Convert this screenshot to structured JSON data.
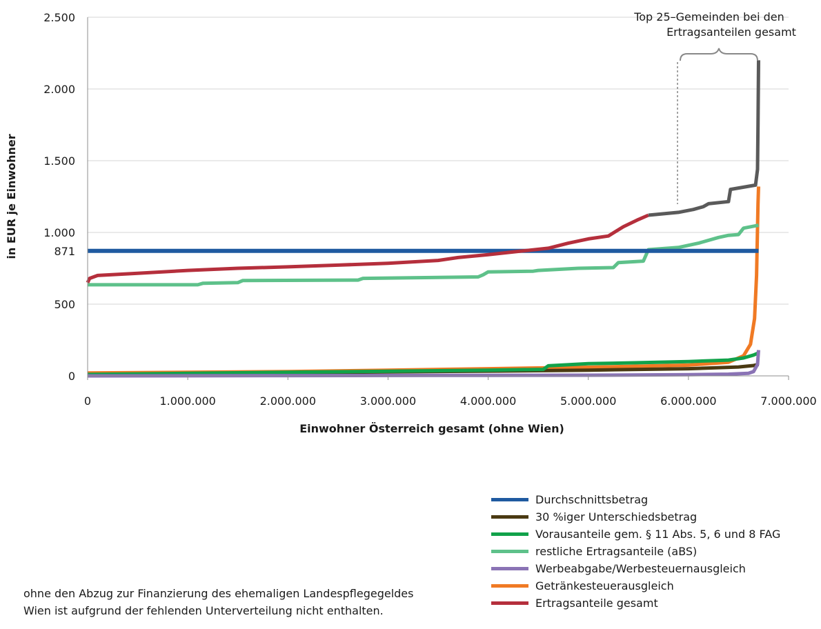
{
  "chart_data": {
    "type": "line",
    "ylabel": "in EUR je Einwohner",
    "xlabel": "Einwohner Österreich gesamt (ohne Wien)",
    "xlim": [
      0,
      7000000
    ],
    "ylim": [
      0,
      2500
    ],
    "x_ticks": [
      0,
      1000000,
      2000000,
      3000000,
      4000000,
      5000000,
      6000000,
      7000000
    ],
    "x_tick_labels": [
      "0",
      "1.000.000",
      "2.000.000",
      "3.000.000",
      "4.000.000",
      "5.000.000",
      "6.000.000",
      "7.000.000"
    ],
    "y_ticks": [
      0,
      500,
      871,
      1000,
      1500,
      2000,
      2500
    ],
    "y_tick_labels": [
      "0",
      "500",
      "871",
      "1.000",
      "1.500",
      "2.000",
      "2.500"
    ],
    "grid": "horizontal",
    "legend_position": "bottom-right",
    "series": [
      {
        "name": "Durchschnittsbetrag",
        "color": "#1f5aa0",
        "points": [
          [
            0,
            871
          ],
          [
            6700000,
            871
          ]
        ]
      },
      {
        "name": "30 %iger Unterschiedsbetrag",
        "color": "#4a3a12",
        "points": [
          [
            0,
            5
          ],
          [
            1000000,
            15
          ],
          [
            2000000,
            22
          ],
          [
            3000000,
            28
          ],
          [
            4000000,
            33
          ],
          [
            5000000,
            40
          ],
          [
            6000000,
            50
          ],
          [
            6500000,
            62
          ],
          [
            6650000,
            72
          ],
          [
            6700000,
            80
          ]
        ]
      },
      {
        "name": "Vorausanteile gem. § 11 Abs. 5, 6 und 8 FAG",
        "color": "#11a24a",
        "points": [
          [
            0,
            10
          ],
          [
            1000000,
            18
          ],
          [
            2000000,
            25
          ],
          [
            3000000,
            32
          ],
          [
            4000000,
            40
          ],
          [
            4550000,
            45
          ],
          [
            4600000,
            70
          ],
          [
            5000000,
            85
          ],
          [
            5500000,
            92
          ],
          [
            6000000,
            100
          ],
          [
            6400000,
            110
          ],
          [
            6550000,
            125
          ],
          [
            6650000,
            145
          ],
          [
            6700000,
            160
          ]
        ]
      },
      {
        "name": "restliche Ertragsanteile (aBS)",
        "color": "#5ec18a",
        "points": [
          [
            0,
            635
          ],
          [
            1100000,
            635
          ],
          [
            1150000,
            645
          ],
          [
            1500000,
            650
          ],
          [
            1550000,
            665
          ],
          [
            2700000,
            668
          ],
          [
            2750000,
            680
          ],
          [
            3900000,
            690
          ],
          [
            3950000,
            705
          ],
          [
            4000000,
            725
          ],
          [
            4450000,
            730
          ],
          [
            4500000,
            735
          ],
          [
            4900000,
            750
          ],
          [
            5250000,
            755
          ],
          [
            5300000,
            790
          ],
          [
            5550000,
            800
          ],
          [
            5600000,
            880
          ],
          [
            5900000,
            895
          ],
          [
            6100000,
            925
          ],
          [
            6300000,
            965
          ],
          [
            6400000,
            980
          ],
          [
            6500000,
            985
          ],
          [
            6550000,
            1030
          ],
          [
            6700000,
            1050
          ]
        ]
      },
      {
        "name": "Werbeabgabe/Werbesteuernausgleich",
        "color": "#8a73b5",
        "points": [
          [
            0,
            0
          ],
          [
            2000000,
            2
          ],
          [
            4000000,
            4
          ],
          [
            5000000,
            5
          ],
          [
            6000000,
            8
          ],
          [
            6400000,
            12
          ],
          [
            6600000,
            18
          ],
          [
            6650000,
            30
          ],
          [
            6690000,
            80
          ],
          [
            6700000,
            180
          ]
        ]
      },
      {
        "name": "Getränkesteuerausgleich",
        "color": "#f07a24",
        "points": [
          [
            0,
            20
          ],
          [
            1000000,
            25
          ],
          [
            2000000,
            30
          ],
          [
            3000000,
            40
          ],
          [
            4000000,
            50
          ],
          [
            5000000,
            60
          ],
          [
            6000000,
            75
          ],
          [
            6400000,
            95
          ],
          [
            6550000,
            140
          ],
          [
            6620000,
            220
          ],
          [
            6660000,
            400
          ],
          [
            6680000,
            700
          ],
          [
            6695000,
            1200
          ],
          [
            6700000,
            1320
          ]
        ]
      },
      {
        "name": "Ertragsanteile gesamt",
        "color": "#b52f3c",
        "points": [
          [
            0,
            650
          ],
          [
            20000,
            680
          ],
          [
            100000,
            700
          ],
          [
            500000,
            715
          ],
          [
            1000000,
            735
          ],
          [
            1500000,
            750
          ],
          [
            2000000,
            760
          ],
          [
            2500000,
            772
          ],
          [
            3000000,
            785
          ],
          [
            3500000,
            805
          ],
          [
            3700000,
            825
          ],
          [
            4000000,
            845
          ],
          [
            4300000,
            868
          ],
          [
            4600000,
            890
          ],
          [
            4800000,
            925
          ],
          [
            5000000,
            955
          ],
          [
            5200000,
            975
          ],
          [
            5350000,
            1040
          ],
          [
            5500000,
            1090
          ],
          [
            5600000,
            1120
          ]
        ]
      },
      {
        "name": "Ertragsanteile gesamt (Top 25)",
        "color": "#5a5a5a",
        "points": [
          [
            5600000,
            1120
          ],
          [
            5900000,
            1140
          ],
          [
            6050000,
            1160
          ],
          [
            6150000,
            1180
          ],
          [
            6200000,
            1200
          ],
          [
            6400000,
            1215
          ],
          [
            6420000,
            1300
          ],
          [
            6670000,
            1330
          ],
          [
            6690000,
            1440
          ],
          [
            6695000,
            1750
          ],
          [
            6700000,
            2200
          ]
        ]
      }
    ],
    "annotations": {
      "top25_line1": "Top 25–Gemeinden bei den",
      "top25_line2": "Ertragsanteilen gesamt"
    }
  },
  "legend": [
    {
      "label": "Durchschnittsbetrag",
      "color": "#1f5aa0"
    },
    {
      "label": "30 %iger Unterschiedsbetrag",
      "color": "#4a3a12"
    },
    {
      "label": "Vorausanteile gem. § 11 Abs. 5, 6 und 8 FAG",
      "color": "#11a24a"
    },
    {
      "label": "restliche Ertragsanteile (aBS)",
      "color": "#5ec18a"
    },
    {
      "label": "Werbeabgabe/Werbesteuernausgleich",
      "color": "#8a73b5"
    },
    {
      "label": "Getränkesteuerausgleich",
      "color": "#f07a24"
    },
    {
      "label": "Ertragsanteile gesamt",
      "color": "#b52f3c"
    }
  ],
  "footnotes": [
    "ohne den Abzug zur Finanzierung des ehemaligen Landespflegegeldes",
    "Wien ist aufgrund der fehlenden Unterverteilung nicht enthalten."
  ]
}
